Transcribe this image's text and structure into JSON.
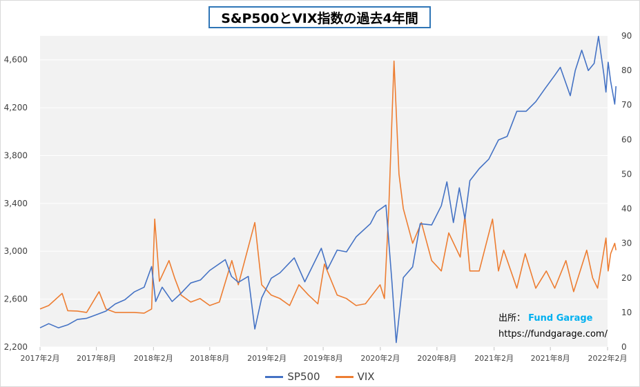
{
  "title": "S&P500とVIX指数の過去4年間",
  "source": {
    "label": "出所：",
    "brand": "Fund Garage",
    "url": "https://fundgarage.com/"
  },
  "colors": {
    "sp500": "#4472c4",
    "vix": "#ed7d31",
    "plot_bg": "#f2f2f2",
    "grid": "#ffffff"
  },
  "chart_data": {
    "type": "line",
    "title": "S&P500とVIX指数の過去4年間",
    "grid": true,
    "legend_position": "bottom",
    "x_range": [
      "2017-02",
      "2022-02"
    ],
    "x_tick_labels": [
      "2017年2月",
      "2017年8月",
      "2018年2月",
      "2018年8月",
      "2019年2月",
      "2019年8月",
      "2020年2月",
      "2020年8月",
      "2021年2月",
      "2021年8月",
      "2022年2月"
    ],
    "y_left": {
      "min": 2200,
      "max": 4800,
      "ticks": [
        2200,
        2600,
        3000,
        3400,
        3800,
        4200,
        4600
      ],
      "tick_labels": [
        "2,200",
        "2,600",
        "3,000",
        "3,400",
        "3,800",
        "4,200",
        "4,600"
      ]
    },
    "y_right": {
      "min": 0,
      "max": 90,
      "ticks": [
        0,
        10,
        20,
        30,
        40,
        50,
        60,
        70,
        80,
        90
      ],
      "tick_labels": [
        "0",
        "10",
        "20",
        "30",
        "40",
        "50",
        "60",
        "70",
        "80",
        "90"
      ]
    },
    "series": [
      {
        "name": "SP500",
        "axis": "left",
        "points": [
          [
            "2017-02-01",
            2360
          ],
          [
            "2017-03-01",
            2395
          ],
          [
            "2017-04-01",
            2360
          ],
          [
            "2017-05-01",
            2385
          ],
          [
            "2017-06-01",
            2430
          ],
          [
            "2017-07-01",
            2440
          ],
          [
            "2017-08-01",
            2470
          ],
          [
            "2017-09-01",
            2500
          ],
          [
            "2017-10-01",
            2560
          ],
          [
            "2017-11-01",
            2595
          ],
          [
            "2017-12-01",
            2660
          ],
          [
            "2018-01-02",
            2700
          ],
          [
            "2018-01-26",
            2872
          ],
          [
            "2018-02-08",
            2580
          ],
          [
            "2018-03-01",
            2700
          ],
          [
            "2018-04-02",
            2580
          ],
          [
            "2018-05-01",
            2650
          ],
          [
            "2018-06-01",
            2735
          ],
          [
            "2018-07-02",
            2760
          ],
          [
            "2018-08-01",
            2840
          ],
          [
            "2018-09-20",
            2930
          ],
          [
            "2018-10-10",
            2790
          ],
          [
            "2018-11-01",
            2740
          ],
          [
            "2018-12-03",
            2790
          ],
          [
            "2018-12-24",
            2350
          ],
          [
            "2019-01-15",
            2610
          ],
          [
            "2019-02-15",
            2775
          ],
          [
            "2019-03-15",
            2820
          ],
          [
            "2019-04-30",
            2945
          ],
          [
            "2019-06-03",
            2745
          ],
          [
            "2019-07-26",
            3025
          ],
          [
            "2019-08-15",
            2850
          ],
          [
            "2019-09-15",
            3010
          ],
          [
            "2019-10-15",
            2995
          ],
          [
            "2019-11-15",
            3120
          ],
          [
            "2019-12-31",
            3230
          ],
          [
            "2020-01-20",
            3330
          ],
          [
            "2020-02-19",
            3386
          ],
          [
            "2020-03-09",
            2750
          ],
          [
            "2020-03-23",
            2237
          ],
          [
            "2020-04-15",
            2780
          ],
          [
            "2020-05-15",
            2870
          ],
          [
            "2020-06-08",
            3230
          ],
          [
            "2020-07-15",
            3220
          ],
          [
            "2020-08-15",
            3380
          ],
          [
            "2020-09-02",
            3580
          ],
          [
            "2020-09-23",
            3240
          ],
          [
            "2020-10-12",
            3530
          ],
          [
            "2020-10-30",
            3270
          ],
          [
            "2020-11-15",
            3590
          ],
          [
            "2020-12-15",
            3690
          ],
          [
            "2021-01-15",
            3770
          ],
          [
            "2021-02-15",
            3930
          ],
          [
            "2021-03-15",
            3960
          ],
          [
            "2021-04-15",
            4170
          ],
          [
            "2021-05-15",
            4170
          ],
          [
            "2021-06-15",
            4250
          ],
          [
            "2021-07-15",
            4360
          ],
          [
            "2021-08-15",
            4470
          ],
          [
            "2021-09-02",
            4537
          ],
          [
            "2021-10-04",
            4300
          ],
          [
            "2021-10-20",
            4510
          ],
          [
            "2021-11-10",
            4680
          ],
          [
            "2021-12-01",
            4510
          ],
          [
            "2021-12-20",
            4570
          ],
          [
            "2022-01-03",
            4796
          ],
          [
            "2022-01-20",
            4480
          ],
          [
            "2022-01-27",
            4330
          ],
          [
            "2022-02-03",
            4580
          ],
          [
            "2022-02-11",
            4420
          ],
          [
            "2022-02-24",
            4230
          ],
          [
            "2022-02-28",
            4380
          ]
        ]
      },
      {
        "name": "VIX",
        "axis": "right",
        "points": [
          [
            "2017-02-01",
            11
          ],
          [
            "2017-03-01",
            12
          ],
          [
            "2017-04-13",
            15.5
          ],
          [
            "2017-05-01",
            10.5
          ],
          [
            "2017-06-01",
            10.4
          ],
          [
            "2017-07-01",
            10
          ],
          [
            "2017-08-10",
            16
          ],
          [
            "2017-09-01",
            11
          ],
          [
            "2017-10-01",
            10
          ],
          [
            "2017-11-01",
            10
          ],
          [
            "2017-12-01",
            10
          ],
          [
            "2018-01-02",
            9.8
          ],
          [
            "2018-01-26",
            11
          ],
          [
            "2018-02-05",
            37
          ],
          [
            "2018-02-20",
            19
          ],
          [
            "2018-03-23",
            25
          ],
          [
            "2018-04-10",
            20
          ],
          [
            "2018-05-01",
            15
          ],
          [
            "2018-06-01",
            13
          ],
          [
            "2018-07-01",
            14
          ],
          [
            "2018-08-01",
            12
          ],
          [
            "2018-09-01",
            13
          ],
          [
            "2018-10-11",
            25
          ],
          [
            "2018-11-01",
            18
          ],
          [
            "2018-12-24",
            36
          ],
          [
            "2019-01-15",
            18
          ],
          [
            "2019-02-15",
            15
          ],
          [
            "2019-03-15",
            14
          ],
          [
            "2019-04-15",
            12
          ],
          [
            "2019-05-15",
            18
          ],
          [
            "2019-06-15",
            15
          ],
          [
            "2019-07-15",
            12.5
          ],
          [
            "2019-08-05",
            24
          ],
          [
            "2019-09-15",
            15
          ],
          [
            "2019-10-15",
            14
          ],
          [
            "2019-11-15",
            12
          ],
          [
            "2019-12-15",
            12.5
          ],
          [
            "2020-01-31",
            18
          ],
          [
            "2020-02-14",
            14
          ],
          [
            "2020-02-28",
            40
          ],
          [
            "2020-03-16",
            82.7
          ],
          [
            "2020-04-01",
            50
          ],
          [
            "2020-04-15",
            40
          ],
          [
            "2020-05-15",
            30
          ],
          [
            "2020-06-12",
            36
          ],
          [
            "2020-07-15",
            25
          ],
          [
            "2020-08-15",
            22
          ],
          [
            "2020-09-08",
            33
          ],
          [
            "2020-10-15",
            26
          ],
          [
            "2020-10-30",
            38
          ],
          [
            "2020-11-15",
            22
          ],
          [
            "2020-12-15",
            22
          ],
          [
            "2021-01-27",
            37
          ],
          [
            "2021-02-15",
            22
          ],
          [
            "2021-03-04",
            28
          ],
          [
            "2021-04-15",
            17
          ],
          [
            "2021-05-12",
            27
          ],
          [
            "2021-06-15",
            17
          ],
          [
            "2021-07-19",
            22
          ],
          [
            "2021-08-15",
            17
          ],
          [
            "2021-09-20",
            25
          ],
          [
            "2021-10-15",
            16
          ],
          [
            "2021-11-26",
            28
          ],
          [
            "2021-12-15",
            20
          ],
          [
            "2021-12-31",
            17
          ],
          [
            "2022-01-27",
            31.5
          ],
          [
            "2022-02-03",
            22
          ],
          [
            "2022-02-11",
            27
          ],
          [
            "2022-02-24",
            30
          ],
          [
            "2022-02-28",
            28
          ]
        ]
      }
    ]
  }
}
